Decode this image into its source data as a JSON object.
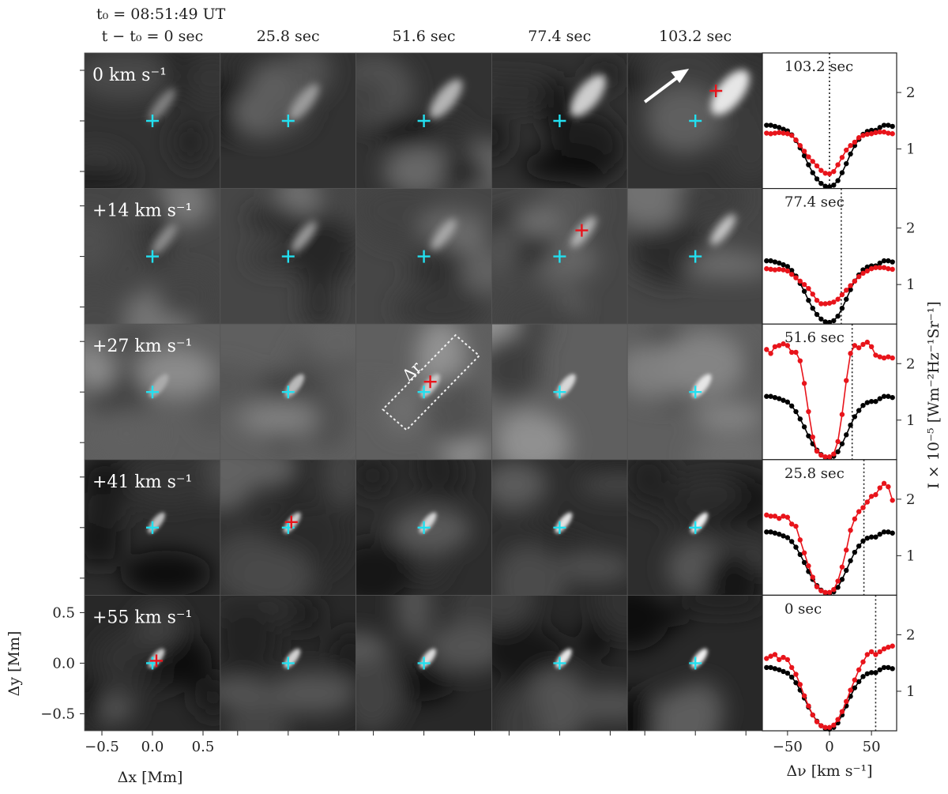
{
  "figure": {
    "t0_label": "t₀ = 08:51:49 UT",
    "time_labels": [
      "t − t₀ = 0 sec",
      "25.8 sec",
      "51.6 sec",
      "77.4 sec",
      "103.2 sec"
    ],
    "velocity_labels": [
      "0 km s⁻¹",
      "+14 km s⁻¹",
      "+27 km s⁻¹",
      "+41 km s⁻¹",
      "+55 km s⁻¹"
    ],
    "x_axis_label": "Δx [Mm]",
    "y_axis_label": "Δy [Mm]",
    "x_tick_labels": [
      "−0.5",
      "0.0",
      "0.5"
    ],
    "y_tick_labels": [
      "0.5",
      "0.0",
      "−0.5"
    ],
    "dr_label": "Δr",
    "red_marker_positions": [
      {
        "row": 0,
        "col": 4
      },
      {
        "row": 1,
        "col": 3
      },
      {
        "row": 2,
        "col": 2
      },
      {
        "row": 3,
        "col": 1
      },
      {
        "row": 4,
        "col": 0
      }
    ]
  },
  "chart_data": {
    "type": "line",
    "xlabel": "Δν [km s⁻¹]",
    "ylabel": "I × 10⁻⁵ [Wm⁻²Hz⁻¹Sr⁻¹]",
    "xlim": [
      -80,
      80
    ],
    "ylim": [
      0.3,
      2.7
    ],
    "x_ticks": [
      -50,
      0,
      50
    ],
    "x_tick_labels": [
      "−50",
      "0",
      "50"
    ],
    "y_ticks": [
      1,
      2
    ],
    "y_tick_labels": [
      "1",
      "2"
    ],
    "colors": {
      "reference": "#000000",
      "profile": "#e8141b"
    },
    "panels": [
      {
        "label": "103.2 sec",
        "marker_velocity": 0,
        "x": [
          -75,
          -70,
          -65,
          -60,
          -55,
          -50,
          -45,
          -40,
          -35,
          -30,
          -25,
          -20,
          -15,
          -10,
          -5,
          0,
          5,
          10,
          15,
          20,
          25,
          30,
          35,
          40,
          45,
          50,
          55,
          60,
          65,
          70,
          75
        ],
        "reference": [
          1.42,
          1.42,
          1.4,
          1.38,
          1.35,
          1.32,
          1.25,
          1.15,
          1.02,
          0.88,
          0.72,
          0.58,
          0.47,
          0.39,
          0.34,
          0.33,
          0.36,
          0.44,
          0.58,
          0.74,
          0.91,
          1.06,
          1.17,
          1.26,
          1.31,
          1.33,
          1.33,
          1.38,
          1.42,
          1.42,
          1.4
        ],
        "profile": [
          1.28,
          1.27,
          1.28,
          1.29,
          1.28,
          1.27,
          1.24,
          1.16,
          1.06,
          0.96,
          0.86,
          0.78,
          0.7,
          0.62,
          0.57,
          0.56,
          0.6,
          0.72,
          0.85,
          0.98,
          1.06,
          1.12,
          1.2,
          1.24,
          1.26,
          1.27,
          1.29,
          1.3,
          1.3,
          1.28,
          1.27
        ]
      },
      {
        "label": "77.4 sec",
        "marker_velocity": 14,
        "x": [
          -75,
          -70,
          -65,
          -60,
          -55,
          -50,
          -45,
          -40,
          -35,
          -30,
          -25,
          -20,
          -15,
          -10,
          -5,
          0,
          5,
          10,
          15,
          20,
          25,
          30,
          35,
          40,
          45,
          50,
          55,
          60,
          65,
          70,
          75
        ],
        "reference": [
          1.42,
          1.42,
          1.4,
          1.38,
          1.35,
          1.32,
          1.25,
          1.15,
          1.02,
          0.88,
          0.72,
          0.58,
          0.47,
          0.39,
          0.34,
          0.33,
          0.36,
          0.44,
          0.58,
          0.74,
          0.91,
          1.06,
          1.17,
          1.26,
          1.31,
          1.33,
          1.33,
          1.38,
          1.42,
          1.42,
          1.4
        ],
        "profile": [
          1.28,
          1.27,
          1.26,
          1.27,
          1.26,
          1.24,
          1.18,
          1.12,
          1.06,
          1.0,
          0.93,
          0.83,
          0.72,
          0.66,
          0.66,
          0.67,
          0.69,
          0.74,
          0.82,
          0.9,
          0.98,
          1.06,
          1.14,
          1.2,
          1.24,
          1.28,
          1.3,
          1.3,
          1.3,
          1.28,
          1.27
        ]
      },
      {
        "label": "51.6 sec",
        "marker_velocity": 27,
        "x": [
          -75,
          -70,
          -65,
          -60,
          -55,
          -50,
          -45,
          -40,
          -35,
          -30,
          -25,
          -20,
          -15,
          -10,
          -5,
          0,
          5,
          10,
          15,
          20,
          25,
          30,
          35,
          40,
          45,
          50,
          55,
          60,
          65,
          70,
          75
        ],
        "reference": [
          1.42,
          1.42,
          1.4,
          1.38,
          1.35,
          1.32,
          1.25,
          1.15,
          1.02,
          0.88,
          0.72,
          0.58,
          0.47,
          0.39,
          0.34,
          0.33,
          0.36,
          0.44,
          0.58,
          0.74,
          0.91,
          1.06,
          1.17,
          1.26,
          1.31,
          1.33,
          1.33,
          1.38,
          1.42,
          1.42,
          1.4
        ],
        "profile": [
          2.25,
          2.18,
          2.3,
          2.32,
          2.35,
          2.32,
          2.2,
          2.2,
          2.05,
          1.65,
          1.15,
          0.7,
          0.45,
          0.38,
          0.35,
          0.35,
          0.4,
          0.62,
          1.1,
          1.7,
          2.18,
          2.32,
          2.28,
          2.34,
          2.38,
          2.3,
          2.15,
          2.12,
          2.1,
          2.12,
          2.1
        ]
      },
      {
        "label": "25.8 sec",
        "marker_velocity": 41,
        "x": [
          -75,
          -70,
          -65,
          -60,
          -55,
          -50,
          -45,
          -40,
          -35,
          -30,
          -25,
          -20,
          -15,
          -10,
          -5,
          0,
          5,
          10,
          15,
          20,
          25,
          30,
          35,
          40,
          45,
          50,
          55,
          60,
          65,
          70,
          75
        ],
        "reference": [
          1.42,
          1.42,
          1.4,
          1.38,
          1.35,
          1.32,
          1.25,
          1.15,
          1.02,
          0.88,
          0.72,
          0.58,
          0.47,
          0.39,
          0.34,
          0.33,
          0.36,
          0.44,
          0.58,
          0.74,
          0.91,
          1.06,
          1.17,
          1.26,
          1.31,
          1.33,
          1.33,
          1.38,
          1.42,
          1.42,
          1.4
        ],
        "profile": [
          1.72,
          1.7,
          1.7,
          1.66,
          1.7,
          1.68,
          1.56,
          1.52,
          1.28,
          1.05,
          0.82,
          0.62,
          0.45,
          0.38,
          0.35,
          0.35,
          0.4,
          0.55,
          0.8,
          1.1,
          1.45,
          1.65,
          1.78,
          1.85,
          1.95,
          2.05,
          2.08,
          2.2,
          2.28,
          2.22,
          1.98
        ]
      },
      {
        "label": "0 sec",
        "marker_velocity": 55,
        "x": [
          -75,
          -70,
          -65,
          -60,
          -55,
          -50,
          -45,
          -40,
          -35,
          -30,
          -25,
          -20,
          -15,
          -10,
          -5,
          0,
          5,
          10,
          15,
          20,
          25,
          30,
          35,
          40,
          45,
          50,
          55,
          60,
          65,
          70,
          75
        ],
        "reference": [
          1.42,
          1.42,
          1.4,
          1.38,
          1.35,
          1.32,
          1.25,
          1.15,
          1.02,
          0.88,
          0.72,
          0.58,
          0.47,
          0.39,
          0.34,
          0.33,
          0.36,
          0.44,
          0.58,
          0.74,
          0.91,
          1.06,
          1.17,
          1.26,
          1.31,
          1.33,
          1.33,
          1.38,
          1.42,
          1.42,
          1.4
        ],
        "profile": [
          1.58,
          1.62,
          1.65,
          1.56,
          1.6,
          1.56,
          1.42,
          1.3,
          1.12,
          0.92,
          0.74,
          0.58,
          0.46,
          0.39,
          0.36,
          0.36,
          0.4,
          0.5,
          0.64,
          0.82,
          1.02,
          1.2,
          1.38,
          1.52,
          1.65,
          1.7,
          1.65,
          1.7,
          1.75,
          1.78,
          1.8
        ]
      }
    ]
  }
}
